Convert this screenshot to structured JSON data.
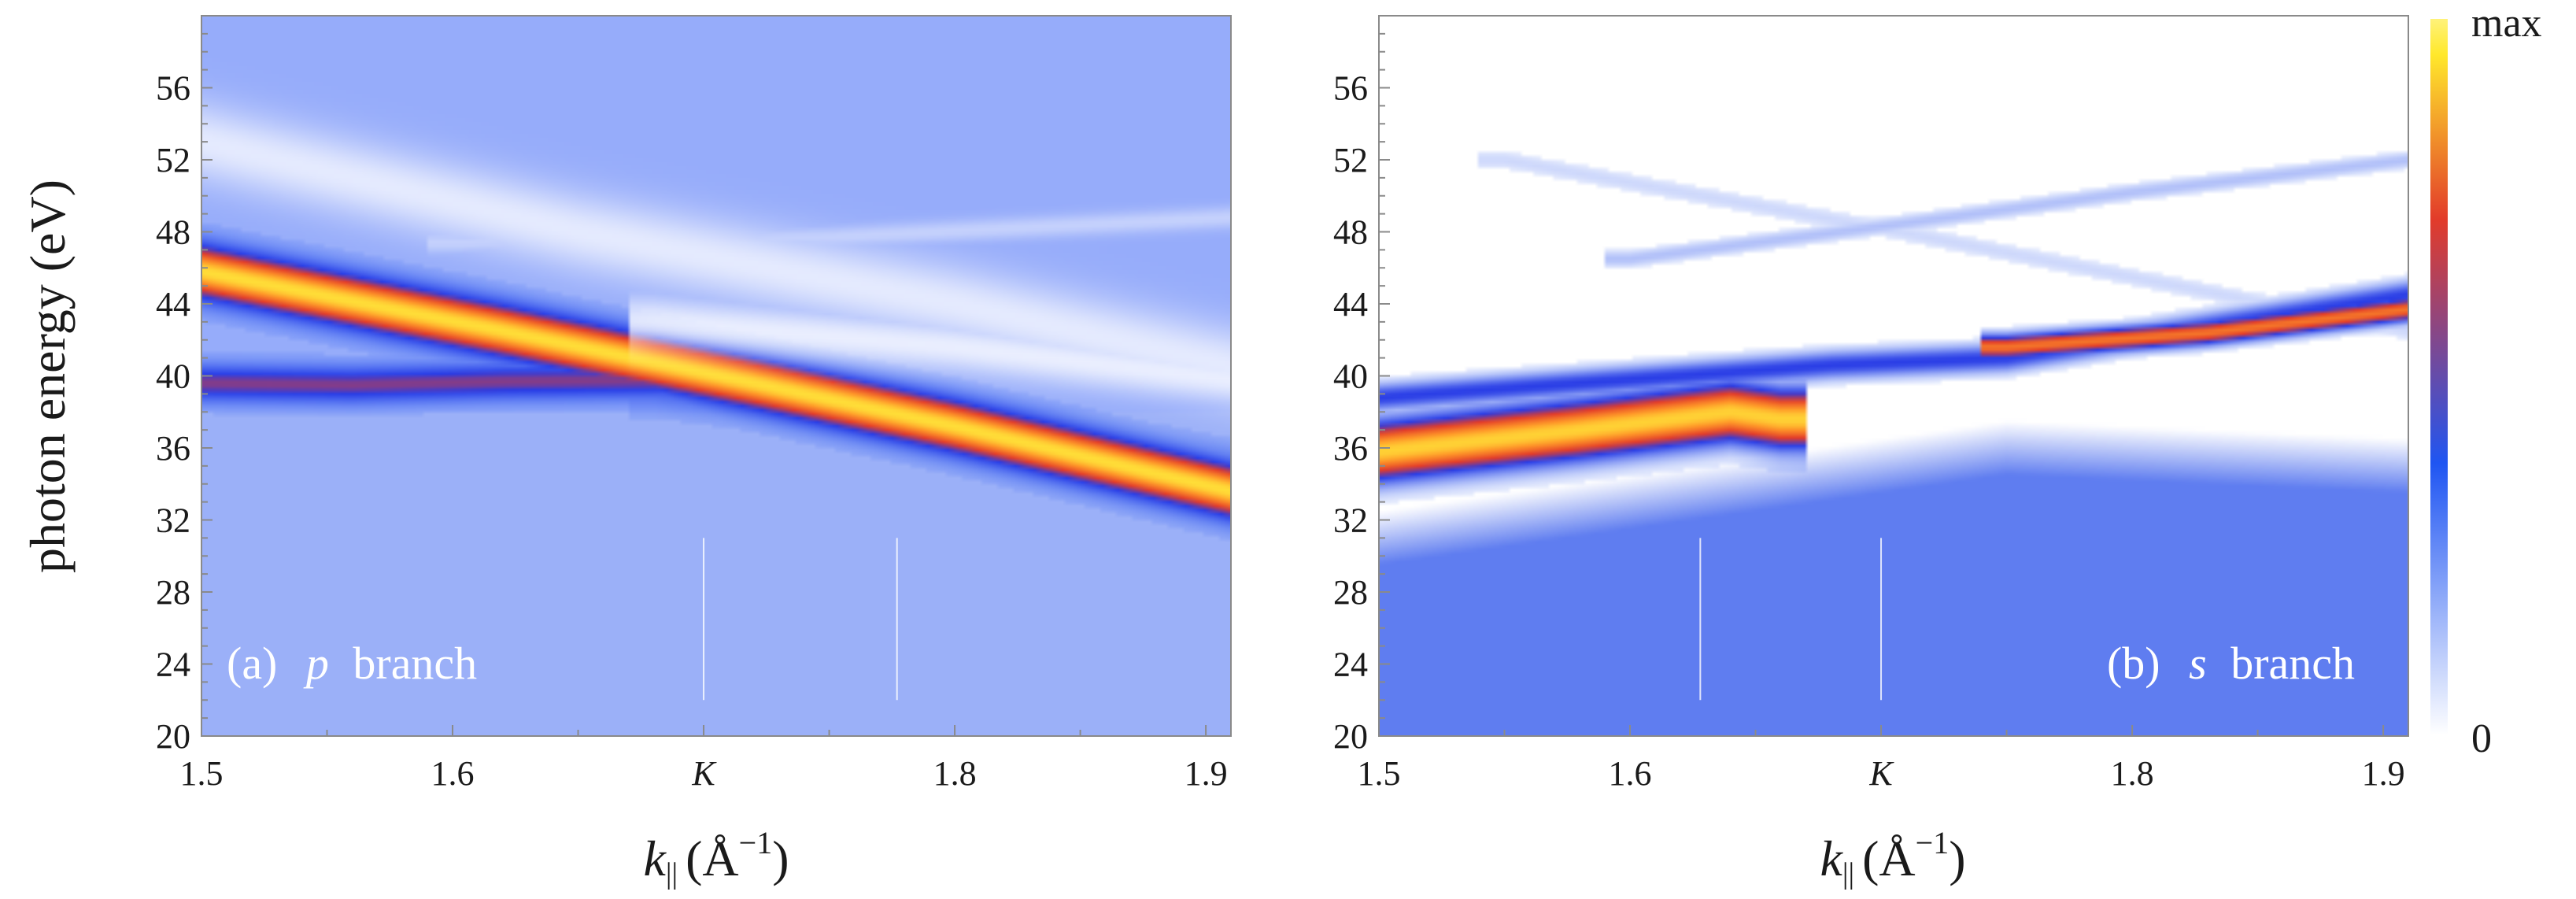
{
  "chart_data": [
    {
      "type": "heatmap",
      "panel": "a",
      "panel_label": "(a)",
      "branch_letter": "p",
      "branch_word": "branch",
      "xlabel_main": "k",
      "xlabel_sub": "||",
      "xlabel_unit": "(Å",
      "xlabel_exp": "−1",
      "xlabel_close": ")",
      "ylabel": "photon energy (eV)",
      "xlim": [
        1.5,
        1.91
      ],
      "ylim": [
        20,
        60
      ],
      "x_ticks": [
        {
          "value": 1.5,
          "label": "1.5"
        },
        {
          "value": 1.6,
          "label": "1.6"
        },
        {
          "value": 1.7,
          "label": "K"
        },
        {
          "value": 1.8,
          "label": "1.8"
        },
        {
          "value": 1.9,
          "label": "1.9"
        }
      ],
      "y_ticks": [
        20,
        24,
        28,
        32,
        36,
        40,
        44,
        48,
        52,
        56
      ],
      "marker_lines_x": [
        1.7,
        1.777
      ],
      "background_level": 0.18,
      "features": [
        {
          "kind": "band",
          "points": [
            [
              1.5,
              45.8
            ],
            [
              1.62,
              42.5
            ],
            [
              1.72,
              39.6
            ],
            [
              1.8,
              37.2
            ],
            [
              1.91,
              33.6
            ]
          ],
          "width": 1.6,
          "intensity": 0.97
        },
        {
          "kind": "band",
          "points": [
            [
              1.5,
              39.6
            ],
            [
              1.56,
              39.5
            ],
            [
              1.62,
              39.7
            ],
            [
              1.7,
              39.8
            ],
            [
              1.8,
              37.4
            ],
            [
              1.91,
              34.0
            ]
          ],
          "width": 1.1,
          "intensity": 0.55
        },
        {
          "kind": "band",
          "points": [
            [
              1.68,
              40.0
            ],
            [
              1.75,
              38.8
            ],
            [
              1.85,
              35.8
            ],
            [
              1.91,
              34.2
            ]
          ],
          "width": 1.6,
          "intensity": 0.45
        },
        {
          "kind": "band",
          "points": [
            [
              1.5,
              53.0
            ],
            [
              1.65,
              48.0
            ],
            [
              1.8,
              44.0
            ],
            [
              1.91,
              40.5
            ]
          ],
          "width": 2.2,
          "intensity": -0.75
        },
        {
          "kind": "band",
          "points": [
            [
              1.6,
              47.4
            ],
            [
              1.75,
              47.7
            ],
            [
              1.91,
              48.8
            ]
          ],
          "width": 0.6,
          "intensity": -0.45
        },
        {
          "kind": "band",
          "points": [
            [
              1.68,
              43.0
            ],
            [
              1.8,
              41.6
            ],
            [
              1.91,
              39.8
            ]
          ],
          "width": 1.4,
          "intensity": -0.8
        }
      ]
    },
    {
      "type": "heatmap",
      "panel": "b",
      "panel_label": "(b)",
      "branch_letter": "s",
      "branch_word": "branch",
      "xlabel_main": "k",
      "xlabel_sub": "||",
      "xlabel_unit": "(Å",
      "xlabel_exp": "−1",
      "xlabel_close": ")",
      "xlim": [
        1.5,
        1.91
      ],
      "ylim": [
        20,
        60
      ],
      "x_ticks": [
        {
          "value": 1.5,
          "label": "1.5"
        },
        {
          "value": 1.6,
          "label": "1.6"
        },
        {
          "value": 1.7,
          "label": "K"
        },
        {
          "value": 1.8,
          "label": "1.8"
        },
        {
          "value": 1.9,
          "label": "1.9"
        }
      ],
      "y_ticks": [
        20,
        24,
        28,
        32,
        36,
        40,
        44,
        48,
        52,
        56
      ],
      "marker_lines_x": [
        1.628,
        1.7
      ],
      "background_level": 0.0,
      "lower_region": {
        "below_points": [
          [
            1.5,
            32.5
          ],
          [
            1.65,
            35.5
          ],
          [
            1.75,
            37.5
          ],
          [
            1.91,
            36.5
          ]
        ],
        "level": 0.24
      },
      "features": [
        {
          "kind": "band",
          "points": [
            [
              1.5,
              35.8
            ],
            [
              1.58,
              37.0
            ],
            [
              1.64,
              38.0
            ],
            [
              1.66,
              37.6
            ]
          ],
          "width": 1.7,
          "intensity": 0.95
        },
        {
          "kind": "band",
          "points": [
            [
              1.5,
              38.8
            ],
            [
              1.6,
              39.8
            ],
            [
              1.68,
              40.6
            ],
            [
              1.75,
              41.0
            ],
            [
              1.91,
              44.5
            ]
          ],
          "width": 0.8,
          "intensity": 0.45
        },
        {
          "kind": "band",
          "points": [
            [
              1.75,
              41.6
            ],
            [
              1.83,
              42.4
            ],
            [
              1.91,
              43.7
            ]
          ],
          "width": 0.7,
          "intensity": 0.78
        },
        {
          "kind": "band",
          "points": [
            [
              1.6,
              46.5
            ],
            [
              1.7,
              48.3
            ],
            [
              1.8,
              50.2
            ],
            [
              1.91,
              52.0
            ]
          ],
          "width": 0.5,
          "intensity": 0.16
        },
        {
          "kind": "band",
          "points": [
            [
              1.55,
              52.0
            ],
            [
              1.7,
              48.2
            ],
            [
              1.91,
              42.5
            ]
          ],
          "width": 0.6,
          "intensity": 0.1
        }
      ]
    }
  ],
  "colorbar": {
    "max_label": "max",
    "min_label": "0",
    "stops": [
      "#ffffff",
      "#1f55f2",
      "#e23b2a",
      "#ffe82b",
      "#fff27a"
    ]
  }
}
